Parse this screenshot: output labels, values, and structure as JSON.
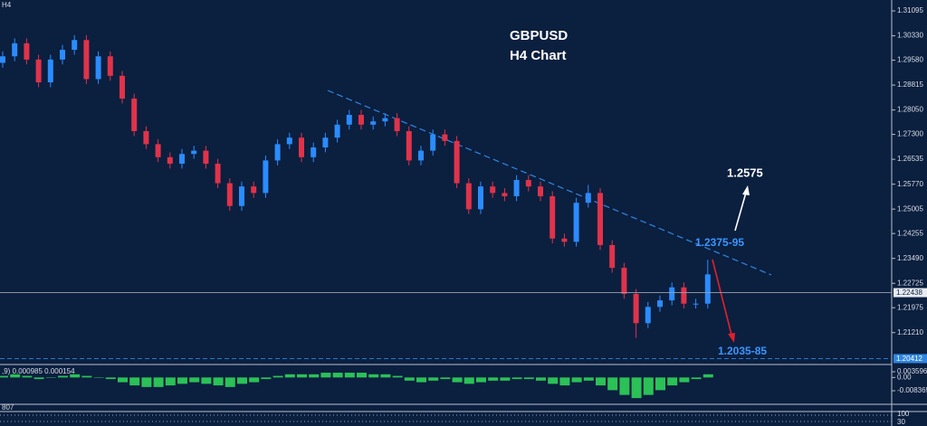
{
  "symbol_label": "H4",
  "chart_data": [
    {
      "type": "candlestick",
      "title": "GBPUSD",
      "subtitle": "H4 Chart",
      "open": [
        1.295,
        1.297,
        1.301,
        1.296,
        1.289,
        1.296,
        1.299,
        1.302,
        1.29,
        1.297,
        1.291,
        1.284,
        1.274,
        1.27,
        1.266,
        1.264,
        1.267,
        1.268,
        1.264,
        1.258,
        1.251,
        1.257,
        1.255,
        1.265,
        1.27,
        1.272,
        1.266,
        1.269,
        1.272,
        1.276,
        1.279,
        1.276,
        1.277,
        1.278,
        1.274,
        1.265,
        1.268,
        1.273,
        1.271,
        1.258,
        1.25,
        1.257,
        1.255,
        1.254,
        1.259,
        1.257,
        1.254,
        1.241,
        1.24,
        1.252,
        1.255,
        1.239,
        1.232,
        1.224,
        1.215,
        1.22,
        1.222,
        1.226,
        1.221,
        1.221
      ],
      "high": [
        1.2985,
        1.3025,
        1.3025,
        1.2975,
        1.2975,
        1.3005,
        1.3035,
        1.3035,
        1.2985,
        1.2985,
        1.2925,
        1.2855,
        1.2755,
        1.2715,
        1.2675,
        1.2685,
        1.2695,
        1.2695,
        1.2655,
        1.2595,
        1.2585,
        1.2585,
        1.2665,
        1.2715,
        1.2735,
        1.2735,
        1.2705,
        1.2735,
        1.2775,
        1.2805,
        1.2805,
        1.2785,
        1.2795,
        1.2795,
        1.2755,
        1.2695,
        1.2745,
        1.2745,
        1.2725,
        1.2595,
        1.2585,
        1.2585,
        1.2565,
        1.2605,
        1.2605,
        1.2585,
        1.2555,
        1.2425,
        1.2535,
        1.2575,
        1.2565,
        1.2405,
        1.2335,
        1.2255,
        1.2215,
        1.2235,
        1.2275,
        1.2275,
        1.2225,
        1.2345
      ],
      "low": [
        1.2935,
        1.2955,
        1.2945,
        1.2875,
        1.2875,
        1.2945,
        1.2975,
        1.2885,
        1.2885,
        1.2895,
        1.2825,
        1.2725,
        1.2685,
        1.2645,
        1.2625,
        1.2625,
        1.2655,
        1.2625,
        1.2565,
        1.2495,
        1.2495,
        1.2535,
        1.2535,
        1.2635,
        1.2685,
        1.2645,
        1.2645,
        1.2675,
        1.2705,
        1.2745,
        1.2745,
        1.2745,
        1.2755,
        1.2725,
        1.2635,
        1.2635,
        1.2665,
        1.2695,
        1.2565,
        1.2485,
        1.2485,
        1.2535,
        1.2525,
        1.2525,
        1.2555,
        1.2525,
        1.2395,
        1.2385,
        1.2385,
        1.2505,
        1.2375,
        1.2305,
        1.2225,
        1.2105,
        1.2135,
        1.2185,
        1.2205,
        1.2195,
        1.2195,
        1.2195
      ],
      "close": [
        1.297,
        1.301,
        1.296,
        1.289,
        1.296,
        1.299,
        1.302,
        1.29,
        1.297,
        1.291,
        1.284,
        1.274,
        1.27,
        1.266,
        1.264,
        1.267,
        1.268,
        1.264,
        1.258,
        1.251,
        1.257,
        1.255,
        1.265,
        1.27,
        1.272,
        1.266,
        1.269,
        1.272,
        1.276,
        1.279,
        1.276,
        1.277,
        1.278,
        1.274,
        1.265,
        1.268,
        1.273,
        1.271,
        1.258,
        1.25,
        1.257,
        1.255,
        1.254,
        1.259,
        1.257,
        1.254,
        1.241,
        1.24,
        1.252,
        1.255,
        1.239,
        1.232,
        1.224,
        1.215,
        1.22,
        1.222,
        1.226,
        1.221,
        1.221,
        1.23
      ],
      "up_color": "#2b8cff",
      "down_color": "#e0334a",
      "ylim": [
        1.2023,
        1.3143
      ],
      "yticks": [
        1.31095,
        {
          "value": 1.3033,
          "label": "1.30330"
        },
        {
          "value": 1.2958,
          "label": "1.29580"
        },
        1.28815,
        {
          "value": 1.2805,
          "label": "1.28050"
        },
        {
          "value": 1.273,
          "label": "1.27300"
        },
        1.26535,
        {
          "value": 1.2577,
          "label": "1.25770"
        },
        1.25005,
        1.24255,
        {
          "value": 1.2349,
          "label": "1.23490"
        },
        1.22725,
        1.21975,
        {
          "value": 1.2121,
          "label": "1.21210"
        }
      ],
      "price_lines": [
        1.22438,
        1.20412
      ],
      "annotations": [
        "1.2575",
        "1.2375-95",
        "1.2035-85"
      ]
    },
    {
      "type": "bar",
      "label": ",9) 0.000985 0.000154",
      "values": [
        0.001,
        0.002,
        0.001,
        -0.001,
        0.0,
        0.001,
        0.002,
        0.001,
        0.0,
        -0.001,
        -0.003,
        -0.005,
        -0.006,
        -0.006,
        -0.005,
        -0.004,
        -0.003,
        -0.004,
        -0.005,
        -0.006,
        -0.004,
        -0.003,
        -0.001,
        0.001,
        0.002,
        0.002,
        0.002,
        0.003,
        0.003,
        0.003,
        0.003,
        0.002,
        0.002,
        0.001,
        -0.002,
        -0.003,
        -0.002,
        -0.001,
        -0.003,
        -0.004,
        -0.003,
        -0.002,
        -0.002,
        -0.001,
        -0.001,
        -0.002,
        -0.004,
        -0.005,
        -0.003,
        -0.002,
        -0.005,
        -0.008,
        -0.011,
        -0.013,
        -0.011,
        -0.008,
        -0.005,
        -0.003,
        -0.001,
        0.002
      ],
      "color": "#2fd35a",
      "ylim": [
        -0.0169,
        0.0076
      ],
      "yticks": [
        0.003596,
        {
          "value": 0,
          "label": "0.00"
        },
        -0.008365
      ]
    }
  ],
  "lower_panel": {
    "left_label": "807",
    "right_labels": [
      "100",
      "30"
    ]
  }
}
